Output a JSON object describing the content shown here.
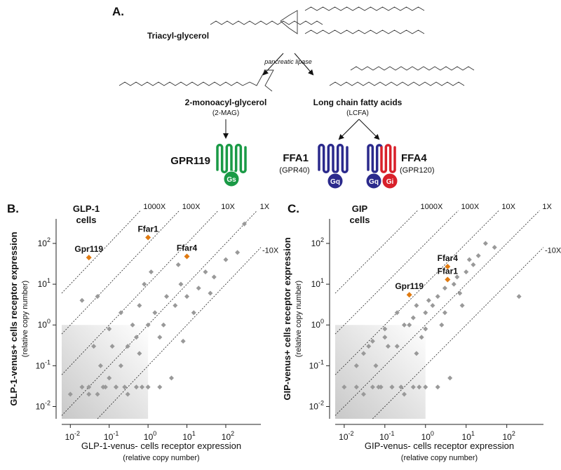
{
  "diagram": {
    "panel_label": "A.",
    "tag_label": "Triacyl-glycerol",
    "enzyme_label": "pancreatic lipase",
    "mag_label": "2-monoacyl-glycerol",
    "mag_abbrev": "(2-MAG)",
    "lcfa_label": "Long chain fatty acids",
    "lcfa_abbrev": "(LCFA)",
    "receptors": [
      {
        "name": "GPR119",
        "alias": null,
        "proteins": [
          "Gs"
        ]
      },
      {
        "name": "FFA1",
        "alias": "(GPR40)",
        "proteins": [
          "Gq"
        ]
      },
      {
        "name": "FFA4",
        "alias": "(GPR120)",
        "proteins": [
          "Gq",
          "Gi"
        ]
      }
    ]
  },
  "chart_data": [
    {
      "type": "scatter",
      "panel_label": "B.",
      "title_lines": [
        "GLP-1",
        "cells"
      ],
      "xlabel": "GLP-1-venus- cells receptor expression",
      "xlabel_sub": "(relative copy number)",
      "ylabel": "GLP-1-venus+ cells receptor expression",
      "ylabel_sub": "(relative copy number)",
      "log_x": true,
      "log_y": true,
      "xlim": [
        0.006,
        800
      ],
      "ylim": [
        0.005,
        400
      ],
      "xticks": [
        {
          "value": 0.01,
          "label": "10",
          "exponent": "-2"
        },
        {
          "value": 0.1,
          "label": "10",
          "exponent": "-1"
        },
        {
          "value": 1,
          "label": "10",
          "exponent": "0"
        },
        {
          "value": 10,
          "label": "10",
          "exponent": "1"
        },
        {
          "value": 100,
          "label": "10",
          "exponent": "2"
        }
      ],
      "yticks": [
        {
          "value": 0.01,
          "label": "10",
          "exponent": "-2"
        },
        {
          "value": 0.1,
          "label": "10",
          "exponent": "-1"
        },
        {
          "value": 1,
          "label": "10",
          "exponent": "0"
        },
        {
          "value": 10,
          "label": "10",
          "exponent": "1"
        },
        {
          "value": 100,
          "label": "10",
          "exponent": "2"
        }
      ],
      "shaded_region_max": 1,
      "reference_lines": [
        {
          "label": "1000X",
          "factor": 1000
        },
        {
          "label": "100X",
          "factor": 100
        },
        {
          "label": "10X",
          "factor": 10
        },
        {
          "label": "1X",
          "factor": 1
        },
        {
          "label": "-10X",
          "factor": 0.1
        }
      ],
      "point_color": "#999999",
      "x": [
        0.01,
        0.02,
        0.03,
        0.05,
        0.08,
        0.1,
        0.15,
        0.2,
        0.3,
        0.5,
        0.7,
        1,
        1.5,
        2,
        3,
        5,
        7,
        10,
        15,
        20,
        30,
        50,
        100,
        200,
        300,
        0.04,
        0.06,
        0.1,
        0.2,
        0.4,
        0.6,
        0.8,
        1.2,
        2.5,
        4,
        6,
        0.05,
        0.3,
        0.02,
        0.15,
        0.03,
        0.07,
        0.25,
        0.5,
        1,
        2,
        8,
        40,
        0.6,
        0.12
      ],
      "y": [
        0.02,
        0.03,
        0.03,
        0.02,
        0.03,
        0.05,
        0.03,
        0.1,
        0.3,
        0.5,
        0.03,
        1,
        2,
        0.5,
        5,
        3,
        10,
        5,
        2,
        8,
        20,
        15,
        40,
        60,
        300,
        0.3,
        0.1,
        0.8,
        2,
        1,
        3,
        10,
        20,
        1,
        0.05,
        30,
        5,
        0.02,
        4,
        0.03,
        0.02,
        0.03,
        0.03,
        0.03,
        0.03,
        0.03,
        0.4,
        6,
        0.2,
        0.3
      ],
      "highlight_color": "#e07a10",
      "highlighted": [
        {
          "label": "Gpr119",
          "x": 0.03,
          "y": 45
        },
        {
          "label": "Ffar1",
          "x": 1,
          "y": 140
        },
        {
          "label": "Ffar4",
          "x": 10,
          "y": 48
        }
      ]
    },
    {
      "type": "scatter",
      "panel_label": "C.",
      "title_lines": [
        "GIP",
        "cells"
      ],
      "xlabel": "GIP-venus- cells receptor expression",
      "xlabel_sub": "(relative copy number)",
      "ylabel": "GIP-venus+ cells receptor expression",
      "ylabel_sub": "(relative copy number)",
      "log_x": true,
      "log_y": true,
      "xlim": [
        0.006,
        800
      ],
      "ylim": [
        0.005,
        400
      ],
      "xticks": [
        {
          "value": 0.01,
          "label": "10",
          "exponent": "-2"
        },
        {
          "value": 0.1,
          "label": "10",
          "exponent": "-1"
        },
        {
          "value": 1,
          "label": "10",
          "exponent": "0"
        },
        {
          "value": 10,
          "label": "10",
          "exponent": "1"
        },
        {
          "value": 100,
          "label": "10",
          "exponent": "2"
        }
      ],
      "yticks": [
        {
          "value": 0.01,
          "label": "10",
          "exponent": "-2"
        },
        {
          "value": 0.1,
          "label": "10",
          "exponent": "-1"
        },
        {
          "value": 1,
          "label": "10",
          "exponent": "0"
        },
        {
          "value": 10,
          "label": "10",
          "exponent": "1"
        },
        {
          "value": 100,
          "label": "10",
          "exponent": "2"
        }
      ],
      "shaded_region_max": 1,
      "reference_lines": [
        {
          "label": "1000X",
          "factor": 1000
        },
        {
          "label": "100X",
          "factor": 100
        },
        {
          "label": "10X",
          "factor": 10
        },
        {
          "label": "1X",
          "factor": 1
        },
        {
          "label": "-10X",
          "factor": 0.1
        }
      ],
      "point_color": "#999999",
      "x": [
        0.01,
        0.02,
        0.03,
        0.05,
        0.08,
        0.1,
        0.15,
        0.2,
        0.3,
        0.5,
        0.7,
        1,
        1.5,
        2,
        3,
        5,
        7,
        10,
        15,
        20,
        30,
        50,
        200,
        0.04,
        0.06,
        0.1,
        0.2,
        0.4,
        0.6,
        0.8,
        1.2,
        2.5,
        4,
        6,
        0.05,
        0.3,
        0.02,
        0.15,
        0.03,
        0.07,
        0.25,
        0.5,
        1,
        2,
        8,
        0.6,
        0.12,
        1,
        3,
        12
      ],
      "y": [
        0.03,
        0.03,
        0.2,
        0.03,
        0.03,
        0.5,
        0.03,
        0.3,
        1,
        1.5,
        0.03,
        2,
        3,
        5,
        8,
        10,
        6,
        20,
        30,
        50,
        100,
        80,
        5,
        0.3,
        0.1,
        0.8,
        2,
        1,
        3,
        0.5,
        4,
        1,
        0.05,
        15,
        0.4,
        0.02,
        0.1,
        0.03,
        0.02,
        0.03,
        0.03,
        0.03,
        0.03,
        0.03,
        3,
        0.2,
        0.3,
        0.8,
        2,
        40
      ],
      "highlight_color": "#e07a10",
      "highlighted": [
        {
          "label": "Gpr119",
          "x": 0.4,
          "y": 5.5
        },
        {
          "label": "Ffar1",
          "x": 3.5,
          "y": 13
        },
        {
          "label": "Ffar4",
          "x": 3.5,
          "y": 27
        }
      ]
    }
  ]
}
